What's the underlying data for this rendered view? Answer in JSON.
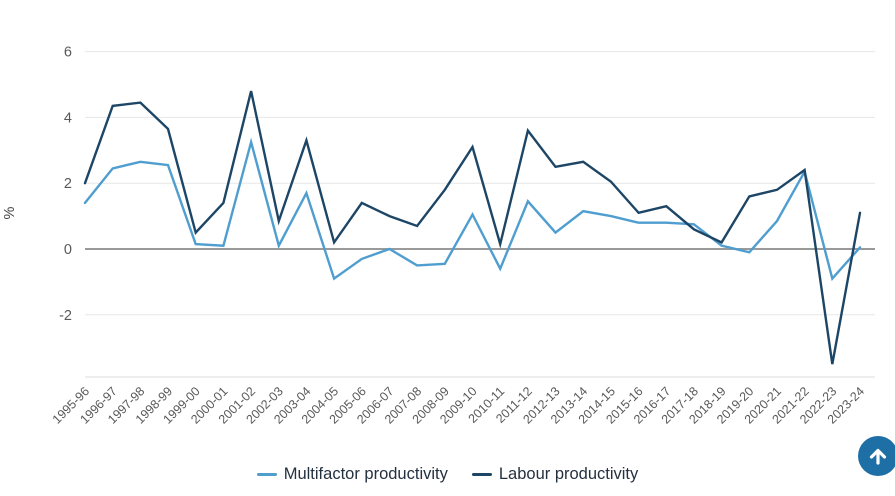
{
  "chart_data": {
    "type": "line",
    "title": "",
    "xlabel": "",
    "ylabel": "%",
    "ylim": [
      -4,
      6
    ],
    "grid": true,
    "legend_position": "bottom",
    "yticks": [
      6,
      4,
      2,
      0,
      -2
    ],
    "categories": [
      "1995-96",
      "1996-97",
      "1997-98",
      "1998-99",
      "1999-00",
      "2000-01",
      "2001-02",
      "2002-03",
      "2003-04",
      "2004-05",
      "2005-06",
      "2006-07",
      "2007-08",
      "2008-09",
      "2009-10",
      "2010-11",
      "2011-12",
      "2012-13",
      "2013-14",
      "2014-15",
      "2015-16",
      "2016-17",
      "2017-18",
      "2018-19",
      "2019-20",
      "2020-21",
      "2021-22",
      "2022-23",
      "2023-24"
    ],
    "series": [
      {
        "name": "Multifactor productivity",
        "color": "#4f9ecf",
        "values": [
          1.4,
          2.45,
          2.65,
          2.55,
          0.15,
          0.1,
          3.25,
          0.1,
          1.7,
          -0.9,
          -0.3,
          0.0,
          -0.5,
          -0.45,
          1.05,
          -0.6,
          1.45,
          0.5,
          1.15,
          1.0,
          0.8,
          0.8,
          0.75,
          0.1,
          -0.1,
          0.85,
          2.35,
          -0.9,
          0.05
        ]
      },
      {
        "name": "Labour productivity",
        "color": "#1d4666",
        "values": [
          2.0,
          4.35,
          4.45,
          3.65,
          0.5,
          1.4,
          4.8,
          0.85,
          3.3,
          0.2,
          1.4,
          1.0,
          0.7,
          1.8,
          3.1,
          0.15,
          3.6,
          2.5,
          2.65,
          2.05,
          1.1,
          1.3,
          0.6,
          0.2,
          1.6,
          1.8,
          2.4,
          -3.5,
          1.1
        ]
      }
    ]
  },
  "colors": {
    "gridline": "#e7e7e7",
    "zero_line": "#9a9a9a",
    "axis_line": "#dcdcdc",
    "tick_label": "#595959",
    "legend_text": "#24313f",
    "back_to_top_bg": "#1e6fa6"
  }
}
